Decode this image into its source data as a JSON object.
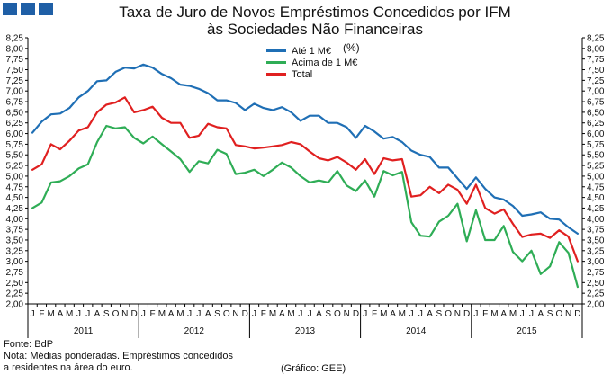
{
  "logo": {
    "color": "#1f5fa6",
    "blocks": 3
  },
  "chart_data": {
    "type": "line",
    "title": "Taxa de Juro de Novos Empréstimos Concedidos por IFM",
    "title_line2": "às Sociedades Não Financeiras",
    "subtitle": "(%)",
    "ylim": [
      2.0,
      8.25
    ],
    "y_ticks": [
      "8,25",
      "8,00",
      "7,75",
      "7,50",
      "7,25",
      "7,00",
      "6,75",
      "6,50",
      "6,25",
      "6,00",
      "5,75",
      "5,50",
      "5,25",
      "5,00",
      "4,75",
      "4,50",
      "4,25",
      "4,00",
      "3,75",
      "3,50",
      "3,25",
      "3,00",
      "2,75",
      "2,50",
      "2,25",
      "2,00"
    ],
    "y_tick_values": [
      8.25,
      8.0,
      7.75,
      7.5,
      7.25,
      7.0,
      6.75,
      6.5,
      6.25,
      6.0,
      5.75,
      5.5,
      5.25,
      5.0,
      4.75,
      4.5,
      4.25,
      4.0,
      3.75,
      3.5,
      3.25,
      3.0,
      2.75,
      2.5,
      2.25,
      2.0
    ],
    "month_labels": [
      "J",
      "F",
      "M",
      "A",
      "M",
      "J",
      "J",
      "A",
      "S",
      "O",
      "N",
      "D"
    ],
    "years": [
      "2011",
      "2012",
      "2013",
      "2014",
      "2015"
    ],
    "grid": false,
    "legend_position": "top-center",
    "series": [
      {
        "name": "Até 1 M€",
        "color": "#1f6fb5",
        "values": [
          6.02,
          6.28,
          6.45,
          6.47,
          6.6,
          6.85,
          7.0,
          7.23,
          7.25,
          7.45,
          7.55,
          7.53,
          7.62,
          7.55,
          7.4,
          7.3,
          7.15,
          7.12,
          7.05,
          6.95,
          6.78,
          6.78,
          6.72,
          6.55,
          6.7,
          6.6,
          6.55,
          6.62,
          6.5,
          6.3,
          6.42,
          6.42,
          6.25,
          6.25,
          6.15,
          5.9,
          6.18,
          6.05,
          5.88,
          5.92,
          5.8,
          5.6,
          5.5,
          5.45,
          5.2,
          5.2,
          4.95,
          4.7,
          4.97,
          4.7,
          4.5,
          4.45,
          4.3,
          4.07,
          4.1,
          4.15,
          4.0,
          3.98,
          3.8,
          3.65
        ]
      },
      {
        "name": "Acima de 1 M€",
        "color": "#2fad56",
        "values": [
          4.25,
          4.38,
          4.85,
          4.88,
          5.0,
          5.18,
          5.28,
          5.8,
          6.18,
          6.12,
          6.15,
          5.9,
          5.77,
          5.93,
          5.75,
          5.58,
          5.4,
          5.1,
          5.35,
          5.3,
          5.62,
          5.52,
          5.05,
          5.08,
          5.15,
          5.0,
          5.15,
          5.32,
          5.2,
          5.0,
          4.85,
          4.9,
          4.85,
          5.12,
          4.78,
          4.65,
          4.9,
          4.52,
          5.12,
          5.02,
          5.1,
          3.92,
          3.6,
          3.58,
          3.93,
          4.07,
          4.35,
          3.47,
          4.2,
          3.5,
          3.5,
          3.83,
          3.22,
          3.0,
          3.25,
          2.7,
          2.88,
          3.45,
          3.2,
          2.4
        ]
      },
      {
        "name": "Total",
        "color": "#e02020",
        "values": [
          5.15,
          5.28,
          5.75,
          5.63,
          5.83,
          6.07,
          6.15,
          6.5,
          6.68,
          6.73,
          6.85,
          6.5,
          6.55,
          6.63,
          6.37,
          6.25,
          6.25,
          5.9,
          5.95,
          6.23,
          6.15,
          6.12,
          5.73,
          5.7,
          5.65,
          5.67,
          5.7,
          5.73,
          5.8,
          5.75,
          5.58,
          5.42,
          5.37,
          5.45,
          5.32,
          5.15,
          5.4,
          5.05,
          5.42,
          5.37,
          5.4,
          4.52,
          4.55,
          4.75,
          4.6,
          4.8,
          4.68,
          4.35,
          4.8,
          4.25,
          4.12,
          4.22,
          3.88,
          3.57,
          3.63,
          3.65,
          3.55,
          3.73,
          3.58,
          3.0
        ]
      }
    ],
    "notes": {
      "source": "Fonte: BdP",
      "note_line1": "Nota: Médias ponderadas. Empréstimos concedidos",
      "note_line2": "a residentes na área do euro.",
      "credit": "(Gráfico: GEE)"
    }
  }
}
